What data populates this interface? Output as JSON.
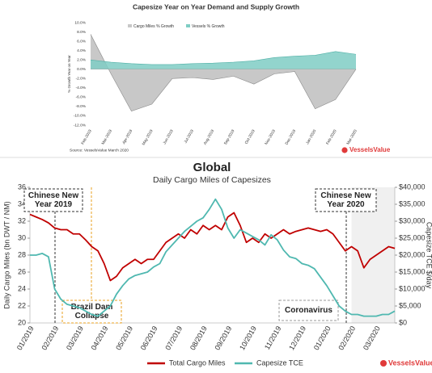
{
  "chart_data": [
    {
      "type": "area",
      "title": "Capesize Year on Year Demand and Supply Growth",
      "y_label": "% Growth Year on Year",
      "categories": [
        "Feb-2019",
        "Mar-2019",
        "Apr-2019",
        "May-2019",
        "Jun-2019",
        "Jul-2019",
        "Aug-2019",
        "Sep-2019",
        "Oct-2019",
        "Nov-2019",
        "Dec-2019",
        "Jan-2020",
        "Feb-2020",
        "Mar-2020"
      ],
      "series": [
        {
          "name": "Cargo Miles % Growth",
          "color": "#c8c8c8",
          "values": [
            7.5,
            -1.0,
            -9.0,
            -7.5,
            -2.0,
            -1.8,
            -2.2,
            -1.5,
            -3.2,
            -1.0,
            -0.5,
            -8.5,
            -6.5,
            0
          ]
        },
        {
          "name": "Vessels % Growth",
          "color": "#7fcdc4",
          "values": [
            2.0,
            1.5,
            1.2,
            1.0,
            1.0,
            1.2,
            1.3,
            1.5,
            1.8,
            2.5,
            2.8,
            3.0,
            3.8,
            3.2
          ]
        }
      ],
      "ylim": [
        -12,
        10
      ],
      "yticks": [
        {
          "value": 10,
          "label": "10.0%"
        },
        {
          "value": 8,
          "label": "8.0%"
        },
        {
          "value": 6,
          "label": "6.0%"
        },
        {
          "value": 4,
          "label": "4.0%"
        },
        {
          "value": 2,
          "label": "2.0%"
        },
        {
          "value": 0,
          "label": "0.0%"
        },
        {
          "value": -2,
          "label": "-2.0%"
        },
        {
          "value": -4,
          "label": "-4.0%"
        },
        {
          "value": -6,
          "label": "-6.0%"
        },
        {
          "value": -8,
          "label": "-8.0%"
        },
        {
          "value": -10,
          "label": "-10.0%"
        },
        {
          "value": -12,
          "label": "-12.0%"
        }
      ],
      "source": "Source: VesselsValue March 2020",
      "logo": "VesselsValue"
    },
    {
      "type": "line",
      "title": "Global",
      "subtitle": "Daily Cargo Miles of Capesizes",
      "y_label": "Daily Cargo Miles (bn DWT / NM)",
      "y2_label": "Capesize TCE $/day",
      "categories": [
        "01/2019",
        null,
        null,
        null,
        "02/2019",
        null,
        null,
        null,
        "03/2019",
        null,
        null,
        null,
        "04/2019",
        null,
        null,
        null,
        "05/2019",
        null,
        null,
        null,
        "06/2019",
        null,
        null,
        null,
        "07/2019",
        null,
        null,
        null,
        "08/2019",
        null,
        null,
        null,
        "09/2019",
        null,
        null,
        null,
        "10/2019",
        null,
        null,
        null,
        "11/2019",
        null,
        null,
        null,
        "12/2019",
        null,
        null,
        null,
        "01/2020",
        null,
        null,
        null,
        "02/2020",
        null,
        null,
        null,
        "03/2020",
        null,
        null,
        null
      ],
      "series": [
        {
          "name": "Total Cargo Miles",
          "color": "#c00000",
          "values": [
            32.8,
            32.5,
            32.2,
            31.8,
            31.2,
            31.0,
            31.0,
            30.5,
            30.5,
            29.8,
            29.0,
            28.5,
            27.0,
            25.0,
            25.5,
            26.5,
            27.0,
            27.5,
            27.0,
            27.5,
            27.5,
            28.5,
            29.5,
            30.0,
            30.5,
            30.0,
            31.0,
            30.5,
            31.5,
            31.0,
            31.5,
            31.0,
            32.5,
            33.0,
            31.5,
            29.5,
            30.0,
            29.5,
            30.5,
            30.0,
            30.5,
            31.0,
            30.5,
            30.8,
            31.0,
            31.2,
            31.0,
            30.8,
            31.0,
            30.5,
            29.5,
            28.5,
            29.0,
            28.5,
            26.5,
            27.5,
            28.0,
            28.5,
            29.0,
            28.8
          ]
        },
        {
          "name": "Capesize TCE",
          "color": "#4fb8b0",
          "axis": "y2",
          "values": [
            20000,
            20000,
            20500,
            19500,
            10000,
            7000,
            5500,
            5000,
            4500,
            3500,
            2500,
            2000,
            3500,
            5000,
            8500,
            11000,
            13000,
            14000,
            14500,
            15000,
            16500,
            17500,
            21000,
            23000,
            25000,
            27000,
            28500,
            30000,
            31000,
            33500,
            36500,
            33500,
            28000,
            25000,
            27500,
            26500,
            25500,
            24500,
            23000,
            26000,
            24500,
            21500,
            19500,
            19000,
            17500,
            17000,
            16000,
            13500,
            11000,
            8000,
            5000,
            3500,
            2500,
            2500,
            2000,
            2000,
            2000,
            2500,
            2500,
            3500
          ]
        }
      ],
      "ylim": [
        20,
        36
      ],
      "yticks": [
        20,
        22,
        24,
        26,
        28,
        30,
        32,
        34,
        36
      ],
      "y2lim": [
        0,
        40000
      ],
      "y2ticks": [
        {
          "value": 0,
          "label": "$0"
        },
        {
          "value": 5000,
          "label": "$5,000"
        },
        {
          "value": 10000,
          "label": "$10,000"
        },
        {
          "value": 15000,
          "label": "$15,000"
        },
        {
          "value": 20000,
          "label": "$20,000"
        },
        {
          "value": 25000,
          "label": "$25,000"
        },
        {
          "value": 30000,
          "label": "$30,000"
        },
        {
          "value": 35000,
          "label": "$35,000"
        },
        {
          "value": 40000,
          "label": "$40,000"
        }
      ],
      "annotations": [
        {
          "lines": [
            "Chinese New",
            "Year 2019"
          ]
        },
        {
          "lines": [
            "Brazil Dam",
            "Collapse"
          ]
        },
        {
          "lines": [
            "Chinese New",
            "Year 2020"
          ]
        },
        {
          "lines": [
            "Coronavirus"
          ]
        }
      ],
      "logo": "VesselsValue"
    }
  ]
}
